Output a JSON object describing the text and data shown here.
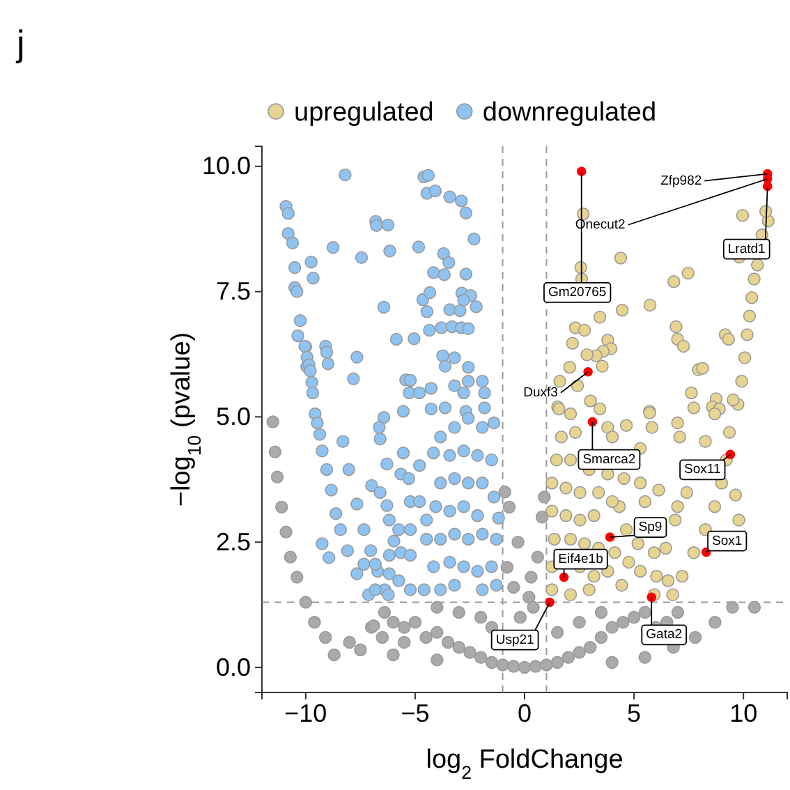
{
  "chart_data": {
    "type": "scatter",
    "title": "j",
    "xlabel": "log$_{2}$ FoldChange",
    "ylabel": "−log$_{10}$ (pvalue)",
    "xlim": [
      -12,
      12
    ],
    "ylim": [
      -0.5,
      10.4
    ],
    "xticks": [
      {
        "value": -10,
        "label": "−10"
      },
      {
        "value": -5,
        "label": "−5"
      },
      0,
      5,
      10
    ],
    "yticks": [
      {
        "value": 0,
        "label": "0.0"
      },
      2.5,
      {
        "value": 5,
        "label": "5.0"
      },
      7.5,
      {
        "value": 10,
        "label": "10.0"
      }
    ],
    "grid": false,
    "legend": "top",
    "marker": "circle",
    "ref_lines": [
      {
        "axis": "x",
        "value": -1,
        "color": "#999999",
        "line_style": "dashed"
      },
      {
        "axis": "x",
        "value": 1,
        "color": "#999999",
        "line_style": "dashed"
      },
      {
        "axis": "y",
        "value": 1.3,
        "color": "#999999",
        "line_style": "dashed"
      }
    ],
    "series": [
      {
        "color": "#aaaaaa",
        "x": [
          -11.5,
          -11.4,
          -11.3,
          -11.1,
          -10.9,
          -10.7,
          -10.4,
          -10.0,
          -9.6,
          -9.1,
          -8.7,
          -7.0,
          -6.9,
          -6.4,
          -6.0,
          -5.5,
          -5.0,
          -4.5,
          -4.0,
          -3.5,
          -3.0,
          -2.5,
          -2.0,
          -1.5,
          -1.0,
          -0.5,
          0.0,
          0.5,
          1.0,
          1.5,
          2.0,
          2.5,
          3.0,
          3.5,
          4.0,
          4.5,
          5.0,
          5.5,
          6.0,
          6.5,
          7.0,
          3.5,
          2.5,
          1.5,
          -2.0,
          -3.0,
          -4.0,
          -1.5,
          -5.5,
          -6.5,
          -8.0,
          -7.5,
          -6.0,
          -4.0,
          -0.8,
          -0.5,
          -0.3,
          0.3,
          0.6,
          0.8,
          -0.7,
          0.2,
          -0.9,
          0.9,
          9.5,
          8.7,
          7.8,
          6.8,
          5.5,
          4.0,
          10.5,
          -0.2,
          0.4
        ],
        "values": [
          4.9,
          4.3,
          3.8,
          3.2,
          2.7,
          2.2,
          1.8,
          1.3,
          0.9,
          0.6,
          0.25,
          0.8,
          0.83,
          1.1,
          0.9,
          0.8,
          0.9,
          0.6,
          0.7,
          0.5,
          0.4,
          0.3,
          0.2,
          0.1,
          0.05,
          0.02,
          0.0,
          0.02,
          0.05,
          0.1,
          0.2,
          0.3,
          0.4,
          0.6,
          0.8,
          0.9,
          1.0,
          1.1,
          0.8,
          0.9,
          1.1,
          1.1,
          0.9,
          0.7,
          1.0,
          1.1,
          1.2,
          0.8,
          0.5,
          0.6,
          0.5,
          0.35,
          0.25,
          0.15,
          2.0,
          1.6,
          2.5,
          1.8,
          2.2,
          3.0,
          3.2,
          1.4,
          3.5,
          3.4,
          1.2,
          0.9,
          0.6,
          0.4,
          0.2,
          0.1,
          1.2,
          1.0,
          1.2
        ]
      },
      {
        "name": "upregulated",
        "color": "#e8d491",
        "x": [
          2.68,
          4.39,
          6.82,
          7.47,
          5.73,
          4.46,
          2.57,
          2.61,
          3.44,
          2.32,
          2.74,
          2.19,
          3.8,
          3.95,
          3.59,
          3.27,
          2.85,
          6.92,
          6.99,
          7.26,
          9.17,
          9.32,
          7.94,
          8.13,
          2.06,
          3.55,
          1.61,
          2.42,
          3.01,
          3.44,
          7.62,
          8.75,
          8.58,
          5.71,
          7.73,
          1.51,
          9.96,
          11.13,
          11.02,
          10.85,
          10.64,
          10.49,
          10.38,
          10.28,
          10.17,
          10.06,
          9.92,
          9.75,
          9.81,
          9.53,
          9.36,
          9.22,
          9.0,
          8.69,
          8.26,
          7.73,
          7.2,
          6.77,
          9.79,
          9.64,
          8.9,
          8.69,
          8.26,
          7.41,
          6.88,
          6.45,
          6.03,
          5.92,
          5.71,
          5.82,
          6.99,
          7.09,
          4.65,
          5.29,
          4.54,
          5.29,
          6.13,
          6.99,
          5.5,
          4.33,
          5.92,
          5.18,
          4.65,
          6.56,
          5.29,
          4.76,
          1.57,
          2.1,
          1.68,
          2.32,
          3.8,
          4.01,
          1.46,
          2.1,
          2.95,
          3.8,
          1.25,
          1.89,
          2.53,
          3.38,
          4.01,
          1.25,
          1.89,
          2.53,
          3.17,
          1.36,
          2.1,
          2.74,
          3.38,
          4.12,
          1.25,
          2.53,
          3.17,
          3.8,
          1.25,
          2.1,
          2.95,
          4.44
        ],
        "values": [
          9.05,
          8.17,
          7.7,
          7.87,
          7.23,
          7.13,
          7.98,
          7.75,
          6.99,
          6.78,
          6.73,
          6.47,
          6.53,
          6.36,
          6.31,
          6.22,
          6.24,
          6.8,
          6.55,
          6.41,
          6.64,
          6.55,
          5.94,
          5.97,
          5.99,
          6.01,
          5.71,
          5.62,
          5.32,
          5.16,
          5.48,
          5.36,
          5.2,
          5.11,
          5.18,
          5.2,
          9.02,
          8.91,
          9.1,
          8.63,
          8.03,
          7.75,
          7.38,
          7.01,
          6.64,
          6.18,
          5.71,
          5.25,
          8.19,
          5.34,
          4.69,
          4.14,
          3.68,
          3.21,
          2.75,
          2.29,
          1.82,
          1.45,
          2.94,
          3.44,
          5.16,
          5.06,
          4.51,
          3.49,
          2.94,
          2.38,
          1.82,
          1.45,
          5.08,
          4.79,
          4.88,
          4.6,
          4.83,
          4.37,
          3.77,
          3.68,
          3.54,
          3.21,
          3.31,
          3.21,
          2.29,
          2.47,
          2.75,
          1.73,
          1.92,
          2.1,
          5.16,
          5.06,
          4.6,
          4.69,
          4.79,
          4.6,
          4.14,
          4.14,
          3.95,
          3.86,
          3.68,
          3.58,
          3.49,
          3.49,
          3.31,
          3.12,
          3.03,
          2.94,
          3.03,
          2.56,
          2.56,
          2.47,
          2.38,
          2.29,
          2.01,
          2.01,
          1.82,
          1.92,
          1.55,
          1.45,
          1.55,
          1.64
        ]
      },
      {
        "name": "downregulated",
        "color": "#8fc3f2",
        "x": [
          -10.9,
          -10.8,
          -10.8,
          -10.6,
          -10.5,
          -10.5,
          -10.4,
          -10.25,
          -10.36,
          -10.0,
          -9.95,
          -8.2,
          -4.6,
          -4.4,
          -4.46,
          -4.08,
          -3.42,
          -2.89,
          -2.68,
          -6.8,
          -6.77,
          -6.24,
          -2.31,
          -8.75,
          -7.45,
          -6.16,
          -4.84,
          -3.7,
          -3.46,
          -9.75,
          -9.66,
          -4.16,
          -3.67,
          -2.68,
          -6.43,
          -4.65,
          -4.33,
          -2.87,
          -2.46,
          -2.78,
          -2.21,
          -4.46,
          -3.42,
          -2.95,
          -4.35,
          -3.8,
          -3.31,
          -2.89,
          -2.57,
          -5.86,
          -5.05,
          -10.04,
          -9.09,
          -9.04,
          -9.94,
          -8.98,
          -9.85,
          -9.79,
          -7.66,
          -7.82,
          -9.72,
          -9.68,
          -3.74,
          -3.2,
          -3.63,
          -2.57,
          -5.43,
          -5.22,
          -5.27,
          -4.8,
          -4.27,
          -3.2,
          -2.57,
          -1.93,
          -1.83,
          -2.78,
          -6.43,
          -5.54,
          -4.27,
          -3.63,
          -2.68,
          -1.83,
          -9.57,
          -9.47,
          -9.36,
          -9.25,
          -9.04,
          -8.83,
          -8.62,
          -8.41,
          -8.09,
          -7.66,
          -7.13,
          -8.3,
          -8.03,
          -7.66,
          -7.34,
          -7.03,
          -6.71,
          -6.39,
          -9.25,
          -8.94,
          -6.64,
          -6.6,
          -5.54,
          -6.29,
          -5.65,
          -5.29,
          -4.8,
          -6.99,
          -6.6,
          -6.29,
          -5.22,
          -4.8,
          -6.18,
          -5.75,
          -5.22,
          -4.48,
          -5.97,
          -6.18,
          -5.65,
          -5.22,
          -7.34,
          -6.82,
          -6.18,
          -5.75,
          -5.22,
          -6.22,
          -6.82,
          -3.84,
          -3.2,
          -2.57,
          -1.93,
          -1.4,
          -4.16,
          -3.42,
          -2.78,
          -2.15,
          -1.51,
          -3.84,
          -3.2,
          -2.57,
          -1.93,
          -1.4,
          -4.06,
          -3.42,
          -2.78,
          -2.15,
          -1.19,
          -4.48,
          -3.84,
          -3.2,
          -2.57,
          -1.93,
          -1.29,
          -4.16,
          -3.42,
          -2.78,
          -2.15,
          -1.51,
          -4.59,
          -3.84,
          -3.2,
          -1.93,
          -1.29
        ],
        "values": [
          9.2,
          9.06,
          8.66,
          8.47,
          7.98,
          7.58,
          7.5,
          6.92,
          6.62,
          6.4,
          6.0,
          9.83,
          9.79,
          9.82,
          9.46,
          9.51,
          9.39,
          9.31,
          9.07,
          8.9,
          8.82,
          8.83,
          8.55,
          8.38,
          8.18,
          8.31,
          8.39,
          8.26,
          8.08,
          8.09,
          7.77,
          7.88,
          7.84,
          7.85,
          7.19,
          7.34,
          7.48,
          7.47,
          7.42,
          7.33,
          7.2,
          7.1,
          7.14,
          7.12,
          6.73,
          6.78,
          6.8,
          6.78,
          6.76,
          6.55,
          6.56,
          6.41,
          6.41,
          6.29,
          6.19,
          6.06,
          6.04,
          5.92,
          6.19,
          5.76,
          5.69,
          5.48,
          6.22,
          6.18,
          6.01,
          5.99,
          5.74,
          5.73,
          5.48,
          5.48,
          5.57,
          5.62,
          5.71,
          5.71,
          5.48,
          5.48,
          4.99,
          5.11,
          5.16,
          5.18,
          5.11,
          5.18,
          5.06,
          4.88,
          4.65,
          4.32,
          3.95,
          3.54,
          3.07,
          2.75,
          2.33,
          1.87,
          1.45,
          4.51,
          3.95,
          3.26,
          2.75,
          2.33,
          1.92,
          1.55,
          2.47,
          2.19,
          4.79,
          4.56,
          4.28,
          4.06,
          3.86,
          3.77,
          4.03,
          3.63,
          3.49,
          3.23,
          3.31,
          3.31,
          2.94,
          2.75,
          2.75,
          2.94,
          2.52,
          2.24,
          2.29,
          2.24,
          2.06,
          2.06,
          1.87,
          1.73,
          1.55,
          1.45,
          1.55,
          4.6,
          4.79,
          4.97,
          4.79,
          4.88,
          4.28,
          4.23,
          4.32,
          4.23,
          4.14,
          3.68,
          3.77,
          3.68,
          3.68,
          3.4,
          3.21,
          3.12,
          3.21,
          3.03,
          2.98,
          2.56,
          2.56,
          2.66,
          2.56,
          2.66,
          2.56,
          2.01,
          2.1,
          2.01,
          1.92,
          2.01,
          1.55,
          1.55,
          1.64,
          1.55,
          1.64
        ]
      },
      {
        "color": "#ff0000",
        "x": [
          2.6,
          11.1,
          11.1,
          11.1,
          2.9,
          3.1,
          9.4,
          3.9,
          8.3,
          1.8,
          5.8,
          1.15
        ],
        "values": [
          9.9,
          9.85,
          9.75,
          9.6,
          5.9,
          4.9,
          4.25,
          2.6,
          2.3,
          1.8,
          1.4,
          1.3
        ]
      }
    ],
    "annotations": [
      {
        "text": "Gm20765",
        "x": 2.6,
        "y": 9.9
      },
      {
        "text": "Zfp982",
        "x": 11.1,
        "y": 9.85
      },
      {
        "text": "Onecut2",
        "x": 11.1,
        "y": 9.75
      },
      {
        "text": "Lratd1",
        "x": 11.1,
        "y": 9.6
      },
      {
        "text": "Duxf3",
        "x": 2.9,
        "y": 5.9
      },
      {
        "text": "Smarca2",
        "x": 3.1,
        "y": 4.9
      },
      {
        "text": "Sox11",
        "x": 9.4,
        "y": 4.25
      },
      {
        "text": "Sp9",
        "x": 3.9,
        "y": 2.6
      },
      {
        "text": "Sox1",
        "x": 8.3,
        "y": 2.3
      },
      {
        "text": "Eif4e1b",
        "x": 1.8,
        "y": 1.8
      },
      {
        "text": "Gata2",
        "x": 5.8,
        "y": 1.4
      },
      {
        "text": "Usp21",
        "x": 1.15,
        "y": 1.3
      }
    ]
  }
}
